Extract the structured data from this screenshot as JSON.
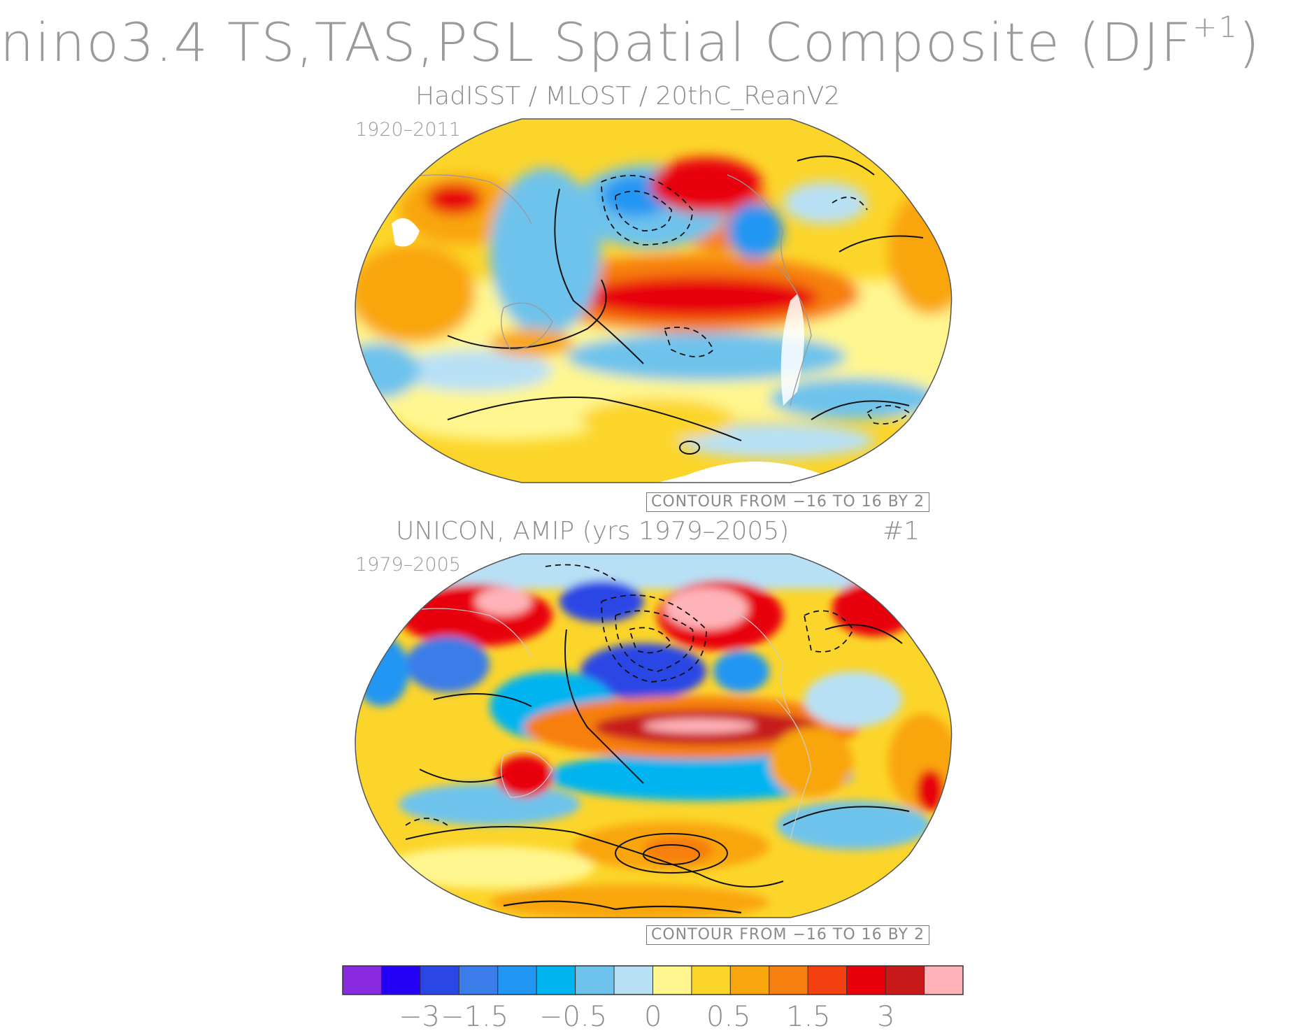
{
  "main_title": "nino3.4 TS,TAS,PSL Spatial Composite (DJF",
  "main_title_sup": "+1",
  "main_title_close": ")",
  "panels": [
    {
      "title": "HadISST / MLOST / 20thC_ReanV2",
      "period": "1920–2011",
      "contour_note": "CONTOUR FROM −16 TO 16 BY 2"
    },
    {
      "title": "UNICON, AMIP (yrs 1979–2005)",
      "run_tag": "#1",
      "period": "1979–2005",
      "contour_note": "CONTOUR FROM −16 TO 16 BY 2"
    }
  ],
  "colorbar": {
    "colors": [
      "#8a2be2",
      "#2400f5",
      "#2a47e6",
      "#3b7de8",
      "#2196f3",
      "#00b4f0",
      "#6ec3ec",
      "#b8e0f5",
      "#fff68f",
      "#fcd52a",
      "#f9a60e",
      "#f77f10",
      "#f44112",
      "#e8000b",
      "#c81a1a",
      "#ffb3b8"
    ],
    "labels": [
      "−3",
      "−1.5",
      "−0.5",
      "0",
      "0.5",
      "1.5",
      "3"
    ]
  },
  "colors": {
    "land_missing": "#ffffff",
    "contour": "#111111",
    "coastline": "#9a9a9a"
  }
}
